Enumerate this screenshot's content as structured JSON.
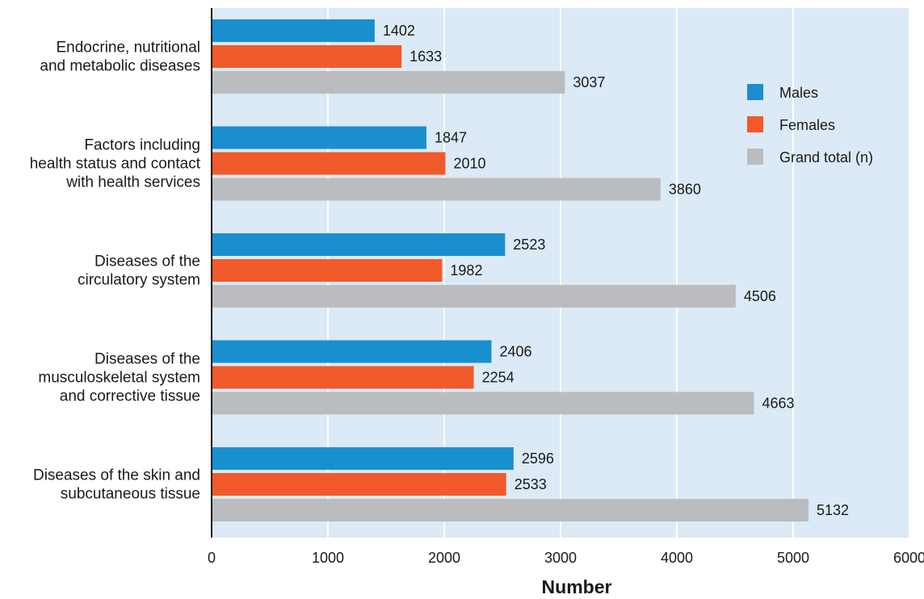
{
  "chart_data": {
    "type": "bar",
    "orientation": "horizontal",
    "categories": [
      [
        "Endocrine, nutritional",
        "and metabolic diseases"
      ],
      [
        "Factors including",
        "health status and contact",
        "with health services"
      ],
      [
        "Diseases of the",
        "circulatory system"
      ],
      [
        "Diseases of the",
        "musculoskeletal system",
        "and corrective tissue"
      ],
      [
        "Diseases of the skin and",
        "subcutaneous tissue"
      ]
    ],
    "series": [
      {
        "name": "Males",
        "color": "#1a8fd0",
        "values": [
          1402,
          1847,
          2523,
          2406,
          2596
        ]
      },
      {
        "name": "Females",
        "color": "#f15a2b",
        "values": [
          1633,
          2010,
          1982,
          2254,
          2533
        ]
      },
      {
        "name": "Grand total (n)",
        "color": "#bbbcbf",
        "values": [
          3037,
          3860,
          4506,
          4663,
          5132
        ]
      }
    ],
    "xlabel": "Number",
    "xlim": [
      0,
      6000
    ],
    "xticks": [
      0,
      1000,
      2000,
      3000,
      4000,
      5000,
      6000
    ],
    "grid": "vertical",
    "legend": "top-right",
    "plot_background": "#dce9f6",
    "data_labels": true
  }
}
